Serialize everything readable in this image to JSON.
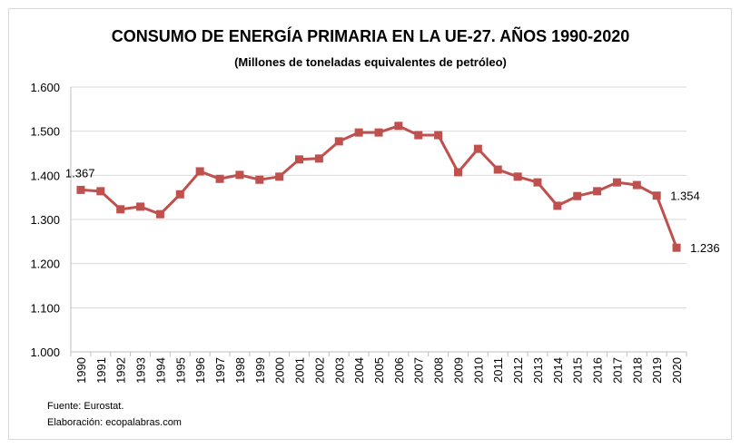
{
  "chart_data": {
    "type": "line",
    "title": "CONSUMO DE ENERGÍA PRIMARIA EN LA UE-27. AÑOS 1990-2020",
    "subtitle": "(Millones de toneladas equivalentes de petróleo)",
    "xlabel": "",
    "ylabel": "",
    "categories": [
      "1990",
      "1991",
      "1992",
      "1993",
      "1994",
      "1995",
      "1996",
      "1997",
      "1998",
      "1999",
      "2000",
      "2001",
      "2002",
      "2003",
      "2004",
      "2005",
      "2006",
      "2007",
      "2008",
      "2009",
      "2010",
      "2011",
      "2012",
      "2013",
      "2014",
      "2015",
      "2016",
      "2017",
      "2018",
      "2019",
      "2020"
    ],
    "values": [
      1367,
      1364,
      1323,
      1329,
      1312,
      1357,
      1409,
      1392,
      1401,
      1390,
      1397,
      1436,
      1438,
      1477,
      1497,
      1497,
      1512,
      1491,
      1491,
      1407,
      1460,
      1413,
      1397,
      1384,
      1331,
      1353,
      1364,
      1384,
      1378,
      1354,
      1236
    ],
    "ylim": [
      1000,
      1600
    ],
    "yticks": [
      "1.000",
      "1.100",
      "1.200",
      "1.300",
      "1.400",
      "1.500",
      "1.600"
    ],
    "ytick_values": [
      1000,
      1100,
      1200,
      1300,
      1400,
      1500,
      1600
    ],
    "data_labels": [
      {
        "year": "1990",
        "text": "1.367"
      },
      {
        "year": "2019",
        "text": "1.354"
      },
      {
        "year": "2020",
        "text": "1.236"
      }
    ],
    "grid": true,
    "legend": "none",
    "series_color": "#c0504d",
    "marker": "square"
  },
  "footer": {
    "source": "Fuente: Eurostat.",
    "credit": "Elaboración: ecopalabras.com"
  }
}
